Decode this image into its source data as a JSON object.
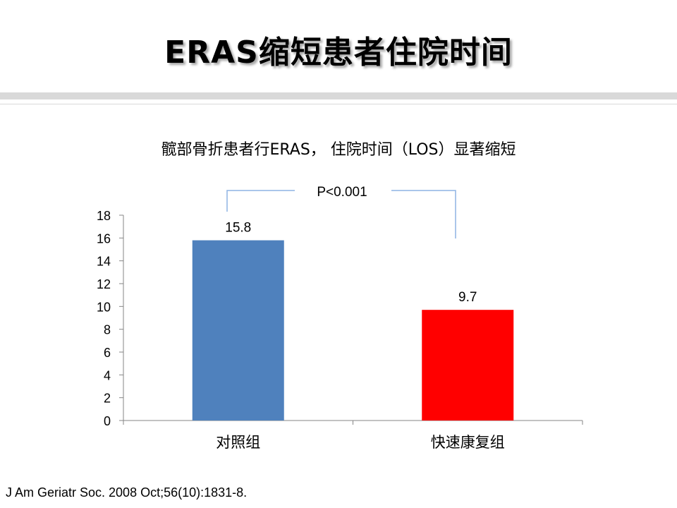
{
  "slide": {
    "title": "ERAS缩短患者住院时间",
    "citation": "J Am Geriatr Soc. 2008 Oct;56(10):1831-8."
  },
  "chart_data": {
    "type": "bar",
    "title": "髋部骨折患者行ERAS， 住院时间（LOS）显著缩短",
    "categories": [
      "对照组",
      "快速康复组"
    ],
    "values": [
      15.8,
      9.7
    ],
    "data_labels": [
      "15.8",
      "9.7"
    ],
    "colors": [
      "#4f81bd",
      "#ff0000"
    ],
    "ylim": [
      0,
      18
    ],
    "yticks": [
      0,
      2,
      4,
      6,
      8,
      10,
      12,
      14,
      16,
      18
    ],
    "grid": false,
    "legend": "none",
    "annotation": "P<0.001",
    "annotation_color": "#8eb4e3"
  }
}
